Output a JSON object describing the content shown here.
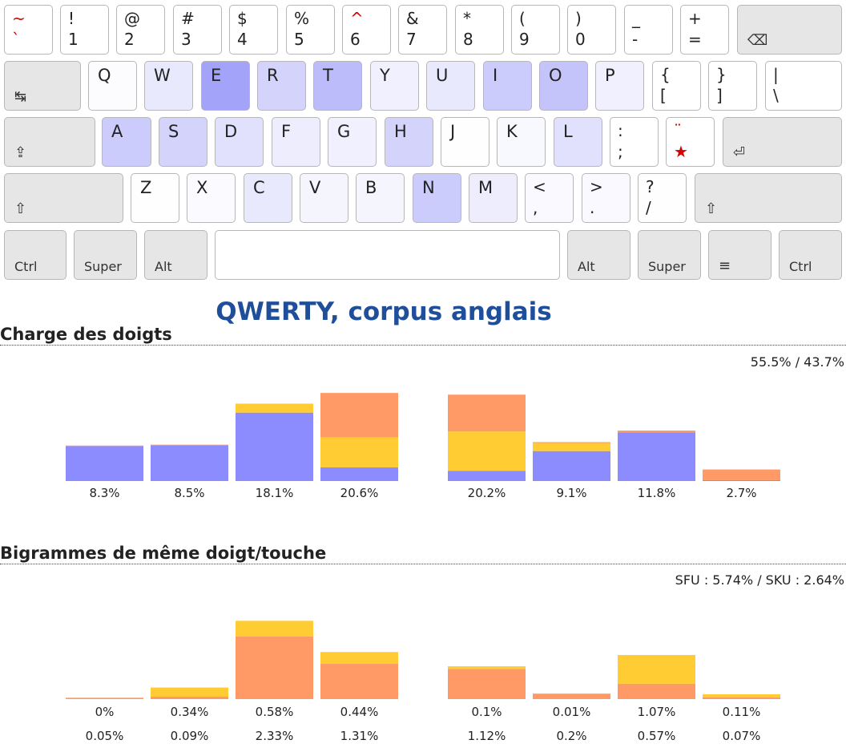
{
  "keyboard": {
    "colors": {
      "heat": "#6b6bf5",
      "dead_key": "#d40000"
    },
    "rows": [
      [
        {
          "id": "tilde",
          "up": "~",
          "down": "`",
          "heat": 0,
          "red": true
        },
        {
          "id": "1",
          "up": "!",
          "down": "1",
          "heat": 0
        },
        {
          "id": "2",
          "up": "@",
          "down": "2",
          "heat": 0
        },
        {
          "id": "3",
          "up": "#",
          "down": "3",
          "heat": 0
        },
        {
          "id": "4",
          "up": "$",
          "down": "4",
          "heat": 0
        },
        {
          "id": "5",
          "up": "%",
          "down": "5",
          "heat": 0
        },
        {
          "id": "6",
          "up": "^",
          "down": "6",
          "heat": 0,
          "red_up": true
        },
        {
          "id": "7",
          "up": "&",
          "down": "7",
          "heat": 0
        },
        {
          "id": "8",
          "up": "*",
          "down": "8",
          "heat": 0
        },
        {
          "id": "9",
          "up": "(",
          "down": "9",
          "heat": 0
        },
        {
          "id": "0",
          "up": ")",
          "down": "0",
          "heat": 0
        },
        {
          "id": "minus",
          "up": "_",
          "down": "-",
          "heat": 0
        },
        {
          "id": "equal",
          "up": "+",
          "down": "=",
          "heat": 0
        },
        {
          "id": "backspace",
          "symbol": "⌫",
          "mod": true
        }
      ],
      [
        {
          "id": "tab",
          "symbol": "↹",
          "mod": true
        },
        {
          "id": "q",
          "label": "Q",
          "heat": 0.02
        },
        {
          "id": "w",
          "label": "W",
          "heat": 0.15
        },
        {
          "id": "e",
          "label": "E",
          "heat": 0.62
        },
        {
          "id": "r",
          "label": "R",
          "heat": 0.3
        },
        {
          "id": "t",
          "label": "T",
          "heat": 0.45
        },
        {
          "id": "y",
          "label": "Y",
          "heat": 0.1
        },
        {
          "id": "u",
          "label": "U",
          "heat": 0.15
        },
        {
          "id": "i",
          "label": "I",
          "heat": 0.35
        },
        {
          "id": "o",
          "label": "O",
          "heat": 0.4
        },
        {
          "id": "p",
          "label": "P",
          "heat": 0.1
        },
        {
          "id": "bracket",
          "up": "{",
          "down": "[",
          "heat": 0
        },
        {
          "id": "brace",
          "up": "}",
          "down": "]",
          "heat": 0
        },
        {
          "id": "backslash",
          "up": "|",
          "down": "\\",
          "heat": 0
        }
      ],
      [
        {
          "id": "caps",
          "symbol": "⇪",
          "mod": true
        },
        {
          "id": "a",
          "label": "A",
          "heat": 0.35
        },
        {
          "id": "s",
          "label": "S",
          "heat": 0.3
        },
        {
          "id": "d",
          "label": "D",
          "heat": 0.2
        },
        {
          "id": "f",
          "label": "F",
          "heat": 0.12
        },
        {
          "id": "g",
          "label": "G",
          "heat": 0.1
        },
        {
          "id": "h",
          "label": "H",
          "heat": 0.3
        },
        {
          "id": "j",
          "label": "J",
          "heat": 0.01
        },
        {
          "id": "k",
          "label": "K",
          "heat": 0.05
        },
        {
          "id": "l",
          "label": "L",
          "heat": 0.2
        },
        {
          "id": "semicolon",
          "up": ":",
          "down": ";",
          "heat": 0
        },
        {
          "id": "quote",
          "up": "¨",
          "down": "★",
          "heat": 0,
          "red": true
        },
        {
          "id": "enter",
          "symbol": "⏎",
          "mod": true
        }
      ],
      [
        {
          "id": "lshift",
          "symbol": "⇧",
          "mod": true
        },
        {
          "id": "z",
          "label": "Z",
          "heat": 0.01
        },
        {
          "id": "x",
          "label": "X",
          "heat": 0.03
        },
        {
          "id": "c",
          "label": "C",
          "heat": 0.15
        },
        {
          "id": "v",
          "label": "V",
          "heat": 0.07
        },
        {
          "id": "b",
          "label": "B",
          "heat": 0.07
        },
        {
          "id": "n",
          "label": "N",
          "heat": 0.35
        },
        {
          "id": "m",
          "label": "M",
          "heat": 0.12
        },
        {
          "id": "comma",
          "up": "<",
          "down": ",",
          "heat": 0.04
        },
        {
          "id": "period",
          "up": ">",
          "down": ".",
          "heat": 0.04
        },
        {
          "id": "slash",
          "up": "?",
          "down": "/",
          "heat": 0.01
        },
        {
          "id": "rshift",
          "symbol": "⇧",
          "mod": true
        }
      ],
      [
        {
          "id": "lctrl",
          "mod_label": "Ctrl",
          "mod": true
        },
        {
          "id": "lsuper",
          "mod_label": "Super",
          "mod": true
        },
        {
          "id": "lalt",
          "mod_label": "Alt",
          "mod": true
        },
        {
          "id": "space",
          "label": "",
          "heat": 0
        },
        {
          "id": "altgr",
          "mod_label": "Alt",
          "mod": true
        },
        {
          "id": "rsuper",
          "mod_label": "Super",
          "mod": true
        },
        {
          "id": "menu",
          "symbol": "≡",
          "mod": true
        },
        {
          "id": "rctrl",
          "mod_label": "Ctrl",
          "mod": true
        }
      ]
    ]
  },
  "title": "QWERTY, corpus anglais",
  "sections": {
    "load": {
      "title": "Charge des doigts",
      "summary": "55.5% / 43.7%"
    },
    "sfb": {
      "title": "Bigrammes de même doigt/touche",
      "summary": "SFU : 5.74% / SKU : 2.64%"
    }
  },
  "chart_data": [
    {
      "type": "bar",
      "title": "Charge des doigts",
      "categories": [
        "",
        "",
        "",
        "",
        "",
        "",
        "",
        ""
      ],
      "stacked": true,
      "colors": {
        "base": "#8c8cff",
        "mid": "#ffcc33",
        "top": "#ff9966"
      },
      "series": [
        {
          "values": [
            8.2,
            8.4,
            16.0,
            3.2,
            2.4,
            7.0,
            11.4,
            0.2
          ]
        },
        {
          "values": [
            0.0,
            0.0,
            2.1,
            7.0,
            9.2,
            1.9,
            0.0,
            0.0
          ]
        },
        {
          "values": [
            0.1,
            0.1,
            0.0,
            10.4,
            8.6,
            0.2,
            0.4,
            2.5
          ]
        }
      ],
      "labels": [
        "8.3%",
        "8.5%",
        "18.1%",
        "20.6%",
        "20.2%",
        "9.1%",
        "11.8%",
        "2.7%"
      ],
      "ylim": [
        0,
        21
      ]
    },
    {
      "type": "bar",
      "title": "Bigrammes de même doigt/touche",
      "categories": [
        "",
        "",
        "",
        "",
        "",
        "",
        "",
        ""
      ],
      "stacked": true,
      "colors": {
        "base": "#ff9966",
        "top": "#ffcc33"
      },
      "series": [
        {
          "values": [
            0.05,
            0.09,
            2.33,
            1.31,
            1.12,
            0.2,
            0.57,
            0.07
          ]
        },
        {
          "values": [
            0.0,
            0.34,
            0.58,
            0.44,
            0.1,
            0.01,
            1.07,
            0.11
          ]
        }
      ],
      "labels_top": [
        "0%",
        "0.34%",
        "0.58%",
        "0.44%",
        "0.1%",
        "0.01%",
        "1.07%",
        "0.11%"
      ],
      "labels_bottom": [
        "0.05%",
        "0.09%",
        "2.33%",
        "1.31%",
        "1.12%",
        "0.2%",
        "0.57%",
        "0.07%"
      ],
      "ylim": [
        0,
        2.95
      ]
    }
  ]
}
